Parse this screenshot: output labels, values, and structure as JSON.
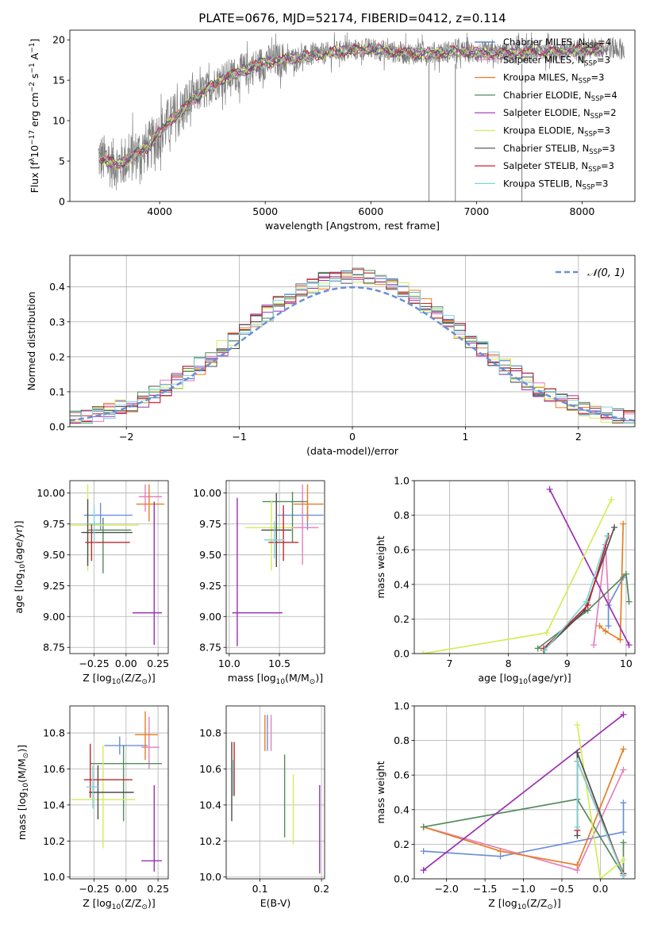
{
  "figure": {
    "title": "PLATE=0676, MJD=52174, FIBERID=0412, z=0.114"
  },
  "colors": {
    "data": "#808080",
    "chabrier_miles": "#4472c4",
    "salpeter_miles": "#e377c2",
    "kroupa_miles": "#e67e22",
    "chabrier_elodie": "#548a5d",
    "salpeter_elodie": "#9b30b0",
    "kroupa_elodie": "#d4ec5a",
    "chabrier_stelib": "#4d4d4d",
    "salpeter_stelib": "#c0282d",
    "kroupa_stelib": "#7fd4d8",
    "blue_line": "#6a8fd8",
    "pink_line": "#e57fbd"
  },
  "chart_data": [
    {
      "id": "spectrum",
      "type": "line",
      "title": "PLATE=0676, MJD=52174, FIBERID=0412, z=0.114",
      "xlabel": "wavelength [Angstrom, rest frame]",
      "ylabel_parts": [
        "Flux [f",
        "λ",
        "10",
        "−17",
        " erg cm",
        "−2",
        " s",
        "−1",
        " A",
        "−1",
        "]"
      ],
      "xlim": [
        3150,
        8500
      ],
      "ylim": [
        0,
        21.2
      ],
      "xticks": [
        4000,
        5000,
        6000,
        7000,
        8000
      ],
      "yticks": [
        0,
        5,
        10,
        15,
        20
      ],
      "legend": "top-right",
      "series": [
        {
          "name": "Chabrier MILES, N",
          "sub": "SSP",
          "suffix": "=4",
          "color_key": "chabrier_miles"
        },
        {
          "name": "Salpeter MILES, N",
          "sub": "SSP",
          "suffix": "=3",
          "color_key": "salpeter_miles"
        },
        {
          "name": "Kroupa MILES, N",
          "sub": "SSP",
          "suffix": "=3",
          "color_key": "kroupa_miles"
        },
        {
          "name": "Chabrier ELODIE, N",
          "sub": "SSP",
          "suffix": "=4",
          "color_key": "chabrier_elodie"
        },
        {
          "name": "Salpeter ELODIE, N",
          "sub": "SSP",
          "suffix": "=2",
          "color_key": "salpeter_elodie"
        },
        {
          "name": "Kroupa ELODIE, N",
          "sub": "SSP",
          "suffix": "=3",
          "color_key": "kroupa_elodie"
        },
        {
          "name": "Chabrier STELIB, N",
          "sub": "SSP",
          "suffix": "=3",
          "color_key": "chabrier_stelib"
        },
        {
          "name": "Salpeter STELIB, N",
          "sub": "SSP",
          "suffix": "=3",
          "color_key": "salpeter_stelib"
        },
        {
          "name": "Kroupa STELIB, N",
          "sub": "SSP",
          "suffix": "=3",
          "color_key": "kroupa_stelib"
        }
      ],
      "continuum": {
        "x": [
          3420,
          3500,
          3600,
          3700,
          3800,
          3900,
          4000,
          4100,
          4200,
          4300,
          4400,
          4600,
          4800,
          5000,
          5200,
          5400,
          5600,
          5800,
          6000,
          6200,
          6400,
          6600,
          6800,
          7000,
          7200,
          7400,
          7600,
          7800,
          8000,
          8200,
          8400
        ],
        "y": [
          5.5,
          5.0,
          4.5,
          5.2,
          6.0,
          6.8,
          8.5,
          10.0,
          11.0,
          12.5,
          13.5,
          15.2,
          16.2,
          17.2,
          17.6,
          18.0,
          18.4,
          18.7,
          18.9,
          18.5,
          18.3,
          18.4,
          18.6,
          18.4,
          18.3,
          18.4,
          18.6,
          18.6,
          18.8,
          19.0,
          18.9
        ]
      }
    },
    {
      "id": "residuals",
      "type": "bar",
      "xlabel": "(data-model)/error",
      "ylabel": "Normed distribution",
      "xlim": [
        -2.5,
        2.5
      ],
      "ylim": [
        0,
        0.49
      ],
      "xticks": [
        -2,
        -1,
        0,
        1,
        2
      ],
      "yticks": [
        0.0,
        0.1,
        0.2,
        0.3,
        0.4
      ],
      "legend": "top-right",
      "legend_label": "𝒩(0, 1)",
      "bin_width": 0.1
    },
    {
      "id": "age_vs_Z",
      "type": "scatter",
      "xlabel_parts": [
        "Z [log",
        "10",
        "(Z/Z",
        "⊙",
        ")]"
      ],
      "ylabel_parts": [
        "age  [log",
        "10",
        "(age/yr)]"
      ],
      "xlim": [
        -0.44,
        0.33
      ],
      "ylim": [
        8.7,
        10.1
      ],
      "xticks": [
        -0.25,
        0.0,
        0.25
      ],
      "yticks": [
        8.75,
        9.0,
        9.25,
        9.5,
        9.75,
        10.0
      ],
      "points": [
        {
          "x": -0.2,
          "y": 9.82,
          "xerr": [
            0.13,
            0.25
          ],
          "yerr": [
            0.12,
            0.1
          ],
          "color_key": "blue_line"
        },
        {
          "x": 0.15,
          "y": 9.97,
          "xerr": [
            0.05,
            0.13
          ],
          "yerr": [
            0.12,
            0.1
          ],
          "color_key": "pink_line"
        },
        {
          "x": 0.18,
          "y": 9.91,
          "xerr": [
            0.1,
            0.12
          ],
          "yerr": [
            0.14,
            0.16
          ],
          "color_key": "kroupa_miles"
        },
        {
          "x": -0.18,
          "y": 9.7,
          "xerr": [
            0.12,
            0.22
          ],
          "yerr": [
            0.35,
            0.1
          ],
          "color_key": "chabrier_elodie"
        },
        {
          "x": 0.22,
          "y": 9.03,
          "xerr": [
            0.17,
            0.06
          ],
          "yerr": [
            0.26,
            0.9
          ],
          "color_key": "salpeter_elodie"
        },
        {
          "x": -0.3,
          "y": 9.74,
          "xerr": [
            0.2,
            0.4
          ],
          "yerr": [
            0.37,
            0.33
          ],
          "color_key": "kroupa_elodie"
        },
        {
          "x": -0.3,
          "y": 9.68,
          "xerr": [
            0.05,
            0.35
          ],
          "yerr": [
            0.27,
            0.27
          ],
          "color_key": "chabrier_stelib"
        },
        {
          "x": -0.27,
          "y": 9.6,
          "xerr": [
            0.05,
            0.3
          ],
          "yerr": [
            0.15,
            0.15
          ],
          "color_key": "salpeter_stelib"
        },
        {
          "x": -0.25,
          "y": 9.75,
          "xerr": [
            0.05,
            0.05
          ],
          "yerr": [
            0.15,
            0.15
          ],
          "color_key": "kroupa_stelib"
        }
      ]
    },
    {
      "id": "age_vs_mass",
      "type": "scatter",
      "xlabel_parts": [
        "mass [log",
        "10",
        "(M/M",
        "⊙",
        ")]"
      ],
      "xlim": [
        9.97,
        10.95
      ],
      "ylim": [
        8.7,
        10.1
      ],
      "xticks": [
        10.0,
        10.5
      ],
      "yticks": [
        8.75,
        9.0,
        9.25,
        9.5,
        9.75,
        10.0
      ],
      "points": [
        {
          "x": 10.78,
          "y": 9.82,
          "xerr": [
            0.3,
            0.16
          ],
          "yerr": [
            0.12,
            0.1
          ],
          "color_key": "blue_line"
        },
        {
          "x": 10.73,
          "y": 9.72,
          "xerr": [
            0.16,
            0.16
          ],
          "yerr": [
            0.3,
            0.35
          ],
          "color_key": "pink_line"
        },
        {
          "x": 10.78,
          "y": 9.91,
          "xerr": [
            0.14,
            0.16
          ],
          "yerr": [
            0.14,
            0.16
          ],
          "color_key": "kroupa_miles"
        },
        {
          "x": 10.63,
          "y": 9.93,
          "xerr": [
            0.3,
            0.15
          ],
          "yerr": [
            0.33,
            0.08
          ],
          "color_key": "chabrier_elodie"
        },
        {
          "x": 10.08,
          "y": 9.03,
          "xerr": [
            0.05,
            0.45
          ],
          "yerr": [
            0.27,
            0.93
          ],
          "color_key": "salpeter_elodie"
        },
        {
          "x": 10.42,
          "y": 9.72,
          "xerr": [
            0.26,
            0.22
          ],
          "yerr": [
            0.35,
            0.22
          ],
          "color_key": "kroupa_elodie"
        },
        {
          "x": 10.47,
          "y": 9.7,
          "xerr": [
            0.15,
            0.15
          ],
          "yerr": [
            0.3,
            0.3
          ],
          "color_key": "chabrier_stelib"
        },
        {
          "x": 10.54,
          "y": 9.6,
          "xerr": [
            0.15,
            0.15
          ],
          "yerr": [
            0.15,
            0.3
          ],
          "color_key": "salpeter_stelib"
        },
        {
          "x": 10.45,
          "y": 9.62,
          "xerr": [
            0.1,
            0.1
          ],
          "yerr": [
            0.15,
            0.15
          ],
          "color_key": "kroupa_stelib"
        }
      ]
    },
    {
      "id": "weight_vs_age",
      "type": "line",
      "xlabel_parts": [
        "age  [log",
        "10",
        "(age/yr)]"
      ],
      "ylabel": "mass weight",
      "xlim": [
        6.4,
        10.15
      ],
      "ylim": [
        0,
        1.0
      ],
      "xticks": [
        7,
        8,
        9,
        10
      ],
      "yticks": [
        0.0,
        0.2,
        0.4,
        0.6,
        0.8,
        1.0
      ],
      "series": [
        {
          "color_key": "blue_line",
          "x": [
            9.7,
            9.7,
            9.95
          ],
          "y": [
            0.16,
            0.28,
            0.44
          ]
        },
        {
          "color_key": "pink_line",
          "x": [
            9.45,
            9.65,
            9.7
          ],
          "y": [
            0.05,
            0.63,
            0.31
          ]
        },
        {
          "color_key": "kroupa_miles",
          "x": [
            9.55,
            9.65,
            9.9,
            9.95
          ],
          "y": [
            0.16,
            0.13,
            0.08,
            0.75
          ]
        },
        {
          "color_key": "chabrier_elodie",
          "x": [
            8.5,
            9.35,
            10.0,
            10.05
          ],
          "y": [
            0.03,
            0.25,
            0.46,
            0.3
          ]
        },
        {
          "color_key": "salpeter_elodie",
          "x": [
            8.7,
            10.05
          ],
          "y": [
            0.95,
            0.05
          ]
        },
        {
          "color_key": "kroupa_elodie",
          "x": [
            6.55,
            8.65,
            9.75
          ],
          "y": [
            0.0,
            0.12,
            0.89
          ]
        },
        {
          "color_key": "chabrier_stelib",
          "x": [
            8.6,
            9.3,
            9.8
          ],
          "y": [
            0.02,
            0.25,
            0.73
          ]
        },
        {
          "color_key": "salpeter_stelib",
          "x": [
            8.6,
            9.35,
            9.7
          ],
          "y": [
            0.03,
            0.28,
            0.68
          ]
        },
        {
          "color_key": "kroupa_stelib",
          "x": [
            8.62,
            9.32,
            9.68
          ],
          "y": [
            0.02,
            0.3,
            0.68
          ]
        }
      ]
    },
    {
      "id": "mass_vs_Z",
      "type": "scatter",
      "xlabel_parts": [
        "Z [log",
        "10",
        "(Z/Z",
        "⊙",
        ")]"
      ],
      "ylabel_parts": [
        "mass [log",
        "10",
        "(M/M",
        "⊙",
        ")]"
      ],
      "xlim": [
        -0.44,
        0.33
      ],
      "ylim": [
        9.99,
        10.95
      ],
      "xticks": [
        -0.25,
        0.0,
        0.25
      ],
      "yticks": [
        10.0,
        10.2,
        10.4,
        10.6,
        10.8
      ],
      "points": [
        {
          "x": -0.05,
          "y": 10.73,
          "xerr": [
            0.12,
            0.22
          ],
          "yerr": [
            0.05,
            0.05
          ],
          "color_key": "blue_line"
        },
        {
          "x": 0.18,
          "y": 10.72,
          "xerr": [
            0.06,
            0.08
          ],
          "yerr": [
            0.12,
            0.17
          ],
          "color_key": "pink_line"
        },
        {
          "x": 0.15,
          "y": 10.79,
          "xerr": [
            0.08,
            0.1
          ],
          "yerr": [
            0.14,
            0.13
          ],
          "color_key": "kroupa_miles"
        },
        {
          "x": -0.02,
          "y": 10.63,
          "xerr": [
            0.26,
            0.3
          ],
          "yerr": [
            0.32,
            0.1
          ],
          "color_key": "chabrier_elodie"
        },
        {
          "x": 0.22,
          "y": 10.09,
          "xerr": [
            0.1,
            0.06
          ],
          "yerr": [
            0.06,
            0.42
          ],
          "color_key": "salpeter_elodie"
        },
        {
          "x": -0.18,
          "y": 10.43,
          "xerr": [
            0.25,
            0.25
          ],
          "yerr": [
            0.27,
            0.3
          ],
          "color_key": "kroupa_elodie"
        },
        {
          "x": -0.22,
          "y": 10.47,
          "xerr": [
            0.07,
            0.28
          ],
          "yerr": [
            0.15,
            0.15
          ],
          "color_key": "chabrier_stelib"
        },
        {
          "x": -0.28,
          "y": 10.54,
          "xerr": [
            0.05,
            0.33
          ],
          "yerr": [
            0.1,
            0.2
          ],
          "color_key": "salpeter_stelib"
        },
        {
          "x": -0.26,
          "y": 10.5,
          "xerr": [
            0.05,
            0.05
          ],
          "yerr": [
            0.12,
            0.12
          ],
          "color_key": "kroupa_stelib"
        }
      ]
    },
    {
      "id": "mass_vs_ebv",
      "type": "scatter",
      "xlabel": "E(B-V)",
      "xlim": [
        0.045,
        0.205
      ],
      "ylim": [
        9.99,
        10.95
      ],
      "xticks": [
        0.1,
        0.2
      ],
      "yticks": [
        10.0,
        10.2,
        10.4,
        10.6,
        10.8
      ],
      "points": [
        {
          "x": 0.112,
          "y": 10.8,
          "xerr": [
            0,
            0
          ],
          "yerr": [
            0.1,
            0.1
          ],
          "color_key": "blue_line"
        },
        {
          "x": 0.118,
          "y": 10.8,
          "xerr": [
            0,
            0
          ],
          "yerr": [
            0.1,
            0.1
          ],
          "color_key": "pink_line"
        },
        {
          "x": 0.108,
          "y": 10.8,
          "xerr": [
            0,
            0
          ],
          "yerr": [
            0.1,
            0.1
          ],
          "color_key": "kroupa_miles"
        },
        {
          "x": 0.14,
          "y": 10.45,
          "xerr": [
            0,
            0
          ],
          "yerr": [
            0.23,
            0.23
          ],
          "color_key": "chabrier_elodie"
        },
        {
          "x": 0.197,
          "y": 10.27,
          "xerr": [
            0,
            0
          ],
          "yerr": [
            0.25,
            0.24
          ],
          "color_key": "salpeter_elodie"
        },
        {
          "x": 0.154,
          "y": 10.4,
          "xerr": [
            0,
            0
          ],
          "yerr": [
            0.22,
            0.17
          ],
          "color_key": "kroupa_elodie"
        },
        {
          "x": 0.054,
          "y": 10.53,
          "xerr": [
            0,
            0
          ],
          "yerr": [
            0.22,
            0.22
          ],
          "color_key": "chabrier_stelib"
        },
        {
          "x": 0.058,
          "y": 10.6,
          "xerr": [
            0,
            0
          ],
          "yerr": [
            0.15,
            0.15
          ],
          "color_key": "salpeter_stelib"
        },
        {
          "x": 0.056,
          "y": 10.55,
          "xerr": [
            0,
            0
          ],
          "yerr": [
            0.1,
            0.1
          ],
          "color_key": "kroupa_stelib"
        }
      ]
    },
    {
      "id": "weight_vs_Z",
      "type": "line",
      "xlabel_parts": [
        "Z [log",
        "10",
        "(Z/Z",
        "⊙",
        ")]"
      ],
      "ylabel": "mass weight",
      "xlim": [
        -2.42,
        0.45
      ],
      "ylim": [
        0,
        1.0
      ],
      "xticks": [
        -2.0,
        -1.5,
        -1.0,
        -0.5,
        0.0
      ],
      "yticks": [
        0.0,
        0.2,
        0.4,
        0.6,
        0.8,
        1.0
      ],
      "series": [
        {
          "color_key": "blue_line",
          "x": [
            -2.3,
            -1.3,
            0.3,
            0.3
          ],
          "y": [
            0.16,
            0.13,
            0.27,
            0.44
          ]
        },
        {
          "color_key": "pink_line",
          "x": [
            -2.3,
            -0.3,
            0.3
          ],
          "y": [
            0.3,
            0.05,
            0.63
          ]
        },
        {
          "color_key": "kroupa_miles",
          "x": [
            -2.3,
            -1.3,
            -0.3,
            0.3
          ],
          "y": [
            0.3,
            0.16,
            0.08,
            0.75
          ]
        },
        {
          "color_key": "chabrier_elodie",
          "x": [
            -2.3,
            -0.3,
            0.3,
            0.3
          ],
          "y": [
            0.3,
            0.46,
            0.02,
            0.21
          ]
        },
        {
          "color_key": "salpeter_elodie",
          "x": [
            -2.3,
            0.3
          ],
          "y": [
            0.05,
            0.95
          ]
        },
        {
          "color_key": "kroupa_elodie",
          "x": [
            -0.3,
            0.0,
            0.3
          ],
          "y": [
            0.89,
            0.0,
            0.11
          ]
        },
        {
          "color_key": "chabrier_stelib",
          "x": [
            -0.3,
            -0.3,
            0.3
          ],
          "y": [
            0.25,
            0.73,
            0.02
          ]
        },
        {
          "color_key": "salpeter_stelib",
          "x": [
            -0.3,
            -0.3,
            0.3
          ],
          "y": [
            0.28,
            0.68,
            0.03
          ]
        },
        {
          "color_key": "kroupa_stelib",
          "x": [
            -0.3,
            -0.3,
            0.3
          ],
          "y": [
            0.3,
            0.68,
            0.02
          ]
        }
      ]
    }
  ]
}
